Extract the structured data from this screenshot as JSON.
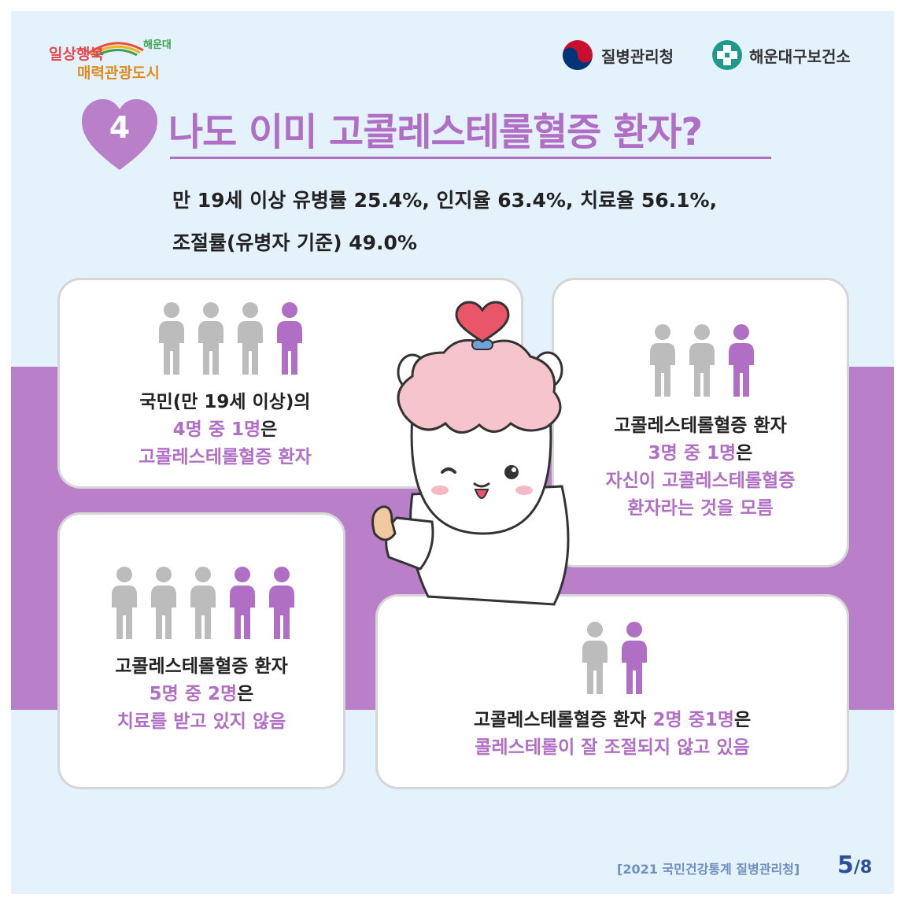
{
  "header": {
    "city_logo_line1": "일상행복",
    "city_logo_line2": "매력관광도시",
    "city_logo_small": "해운대",
    "kdca_name": "질병관리청",
    "health_center_name": "해운대구보건소"
  },
  "heading": {
    "number": "4",
    "title": "나도 이미 고콜레스테롤혈증 환자?"
  },
  "summary": {
    "line1": "만 19세 이상 유병률 25.4%, 인지율 63.4%, 치료율 56.1%,",
    "line2": "조절률(유병자 기준) 49.0%"
  },
  "cards": [
    {
      "figures_total": 4,
      "figures_highlighted": 1,
      "line1_a": "국민(만 19세 이상)의",
      "line1_b": "",
      "line2_a": "4명 중 1명",
      "line2_b": "은",
      "line3": "고콜레스테롤혈증 환자"
    },
    {
      "figures_total": 3,
      "figures_highlighted": 1,
      "line1": "고콜레스테롤혈증 환자",
      "line2_a": "3명 중 1명",
      "line2_b": "은",
      "line3": "자신이 고콜레스테롤혈증",
      "line4": "환자라는 것을 모름"
    },
    {
      "figures_total": 5,
      "figures_highlighted": 2,
      "line1": "고콜레스테롤혈증 환자",
      "line2_a": "5명 중 2명",
      "line2_b": "은",
      "line3": "치료를 받고 있지 않음"
    },
    {
      "figures_total": 2,
      "figures_highlighted": 1,
      "line1_a": "고콜레스테롤혈증 환자 ",
      "line1_b": "2명 중1명",
      "line1_c": "은",
      "line2": "콜레스테롤이 잘 조절되지 않고 있음"
    }
  ],
  "footer": {
    "source": "[2021 국민건강통계 질병관리청]",
    "page_current": "5",
    "page_total": "/8"
  },
  "colors": {
    "accent_purple": "#b06ec4",
    "band_purple": "#b97fc9",
    "background": "#e3f2fb",
    "figure_gray": "#bcbcbc"
  }
}
